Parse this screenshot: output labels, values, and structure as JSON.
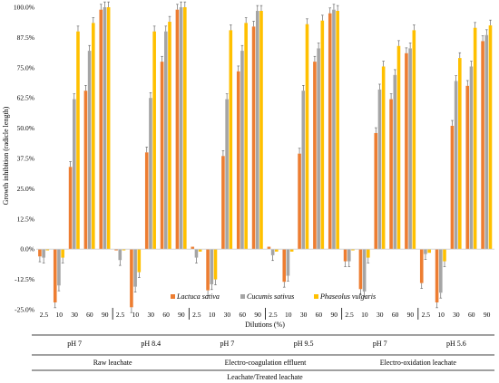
{
  "chart_data": {
    "type": "bar",
    "ylabel": "Growth inhibition (radicle length)",
    "xlabel": "Dilutions (%)",
    "ylim": [
      -25,
      100
    ],
    "yticks": [
      "100.0%",
      "87.5%",
      "75.0%",
      "62.5%",
      "50.0%",
      "37.5%",
      "25.0%",
      "12.5%",
      "0.0%",
      "-12.5%",
      "-25.0%"
    ],
    "ytick_values": [
      100,
      87.5,
      75,
      62.5,
      50,
      37.5,
      25,
      12.5,
      0,
      -12.5,
      -25
    ],
    "grid": false,
    "legend_position": "bottom-center",
    "dilutions": [
      "2.5",
      "10",
      "30",
      "60",
      "90"
    ],
    "series": [
      {
        "name": "Lactuca sativa",
        "color": "#ed7d31"
      },
      {
        "name": "Cucumis sativus",
        "color": "#a5a5a5"
      },
      {
        "name": "Phaseolus vulgaris",
        "color": "#ffc000"
      }
    ],
    "groups": [
      {
        "ph": "pH 7",
        "values": [
          [
            -3,
            -22,
            34,
            65.5,
            99
          ],
          [
            -3.5,
            -15,
            62,
            82,
            100
          ],
          [
            -0.5,
            -3.5,
            90,
            93.5,
            100
          ]
        ]
      },
      {
        "ph": "pH 8.4",
        "values": [
          [
            -0.5,
            -24,
            40,
            77.5,
            99
          ],
          [
            -4.5,
            -15.5,
            62.5,
            90,
            100
          ],
          [
            -0.5,
            -9.5,
            90,
            94,
            100
          ]
        ]
      },
      {
        "ph": "pH 7",
        "values": [
          [
            1,
            -17,
            38.5,
            73.5,
            92
          ],
          [
            -3.5,
            -14.5,
            62,
            82,
            98.5
          ],
          [
            -1,
            -12.5,
            90.5,
            93.5,
            98.5
          ]
        ]
      },
      {
        "ph": "pH 9.5",
        "values": [
          [
            1,
            -13.5,
            39.5,
            77.5,
            97.5
          ],
          [
            -2.5,
            -11,
            65.5,
            83,
            99
          ],
          [
            -1,
            -1,
            93,
            94.5,
            98.5
          ]
        ]
      },
      {
        "ph": "pH 7",
        "values": [
          [
            -5,
            -16.5,
            48,
            62,
            81
          ],
          [
            -5,
            -17.5,
            66,
            72,
            83
          ],
          [
            -0.5,
            -3.5,
            75.5,
            84,
            90.5
          ]
        ]
      },
      {
        "ph": "pH 5.6",
        "values": [
          [
            -14,
            -22,
            51,
            67.5,
            86
          ],
          [
            -2,
            -18,
            69.5,
            75.5,
            88.5
          ],
          [
            -1.5,
            -5,
            79,
            91.5,
            92.5
          ]
        ]
      }
    ],
    "treatments": [
      "Raw leachate",
      "Electro-coagulation effluent",
      "Electro-oxidation leachate"
    ],
    "bottom_title": "Leachate/Treated leachate"
  }
}
